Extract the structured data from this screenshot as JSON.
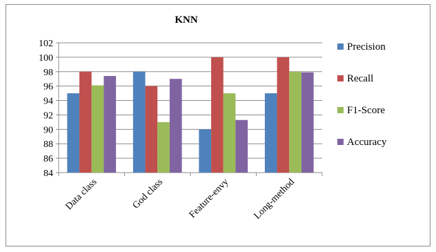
{
  "chart_data": {
    "type": "bar",
    "title": "KNN",
    "xlabel": "",
    "ylabel": "",
    "categories": [
      "Data class",
      "God class",
      "Feature-envy",
      "Long-method"
    ],
    "series": [
      {
        "name": "Precision",
        "color": "#4f81bd",
        "values": [
          95,
          98,
          90,
          95
        ]
      },
      {
        "name": "Recall",
        "color": "#c0504d",
        "values": [
          98,
          96,
          100,
          100
        ]
      },
      {
        "name": "F1-Score",
        "color": "#9bbb59",
        "values": [
          96.1,
          91,
          95,
          98
        ]
      },
      {
        "name": "Accuracy",
        "color": "#8064a2",
        "values": [
          97.4,
          97,
          91.3,
          97.9
        ]
      }
    ],
    "ylim": [
      84,
      102
    ],
    "yticks": [
      84,
      86,
      88,
      90,
      92,
      94,
      96,
      98,
      100,
      102
    ],
    "grid": true,
    "legend": "right"
  }
}
